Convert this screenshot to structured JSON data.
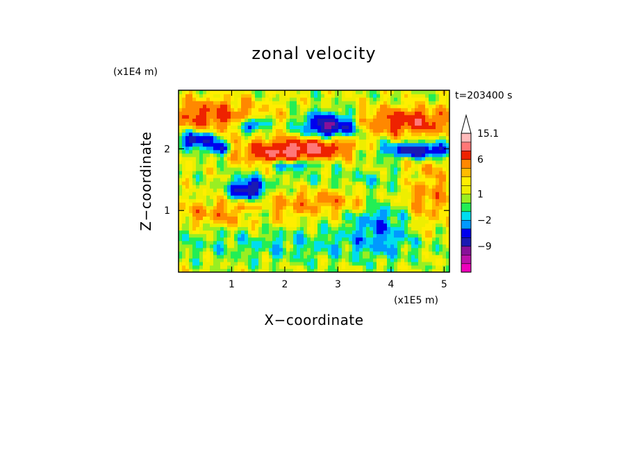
{
  "chart_data": {
    "type": "heatmap",
    "title": "zonal velocity",
    "xlabel": "X−coordinate",
    "ylabel": "Z−coordinate",
    "x_scale_label": "(x1E5 m)",
    "y_scale_label": "(x1E4 m)",
    "time_label": "t=203400 s",
    "xlim": [
      0,
      5.1
    ],
    "ylim": [
      0,
      2.95
    ],
    "x_ticks": [
      1,
      2,
      3,
      4,
      5
    ],
    "y_ticks": [
      1,
      2
    ],
    "colorbar": {
      "labeled_ticks": [
        "15.1",
        "6",
        "1",
        "−2",
        "−9"
      ],
      "levels": [
        -15,
        -12,
        -9,
        -6,
        -4,
        -2,
        -1,
        0,
        1,
        2,
        3,
        4,
        6,
        9,
        12,
        15.1
      ],
      "colors": [
        "#ee00bb",
        "#bb11aa",
        "#881199",
        "#1a1ab3",
        "#0000ee",
        "#0099ff",
        "#00ddee",
        "#22ee55",
        "#99ee22",
        "#eeee00",
        "#ffee00",
        "#ffbb00",
        "#ff8800",
        "#ee2200",
        "#ff7777",
        "#ffbbbb",
        "#ffffff"
      ],
      "extends_max": true
    },
    "description_features": [
      {
        "type": "band",
        "x0": 0.0,
        "x1": 5.1,
        "z": 2.7,
        "value": 5
      },
      {
        "type": "blob",
        "x": 1.3,
        "z": 1.35,
        "value": -10
      },
      {
        "type": "blob",
        "x": 2.8,
        "z": 2.4,
        "value": -11
      },
      {
        "type": "blob",
        "x": 4.5,
        "z": 2.0,
        "value": -10
      },
      {
        "type": "blob",
        "x": 2.0,
        "z": 2.0,
        "value": 7
      }
    ]
  }
}
